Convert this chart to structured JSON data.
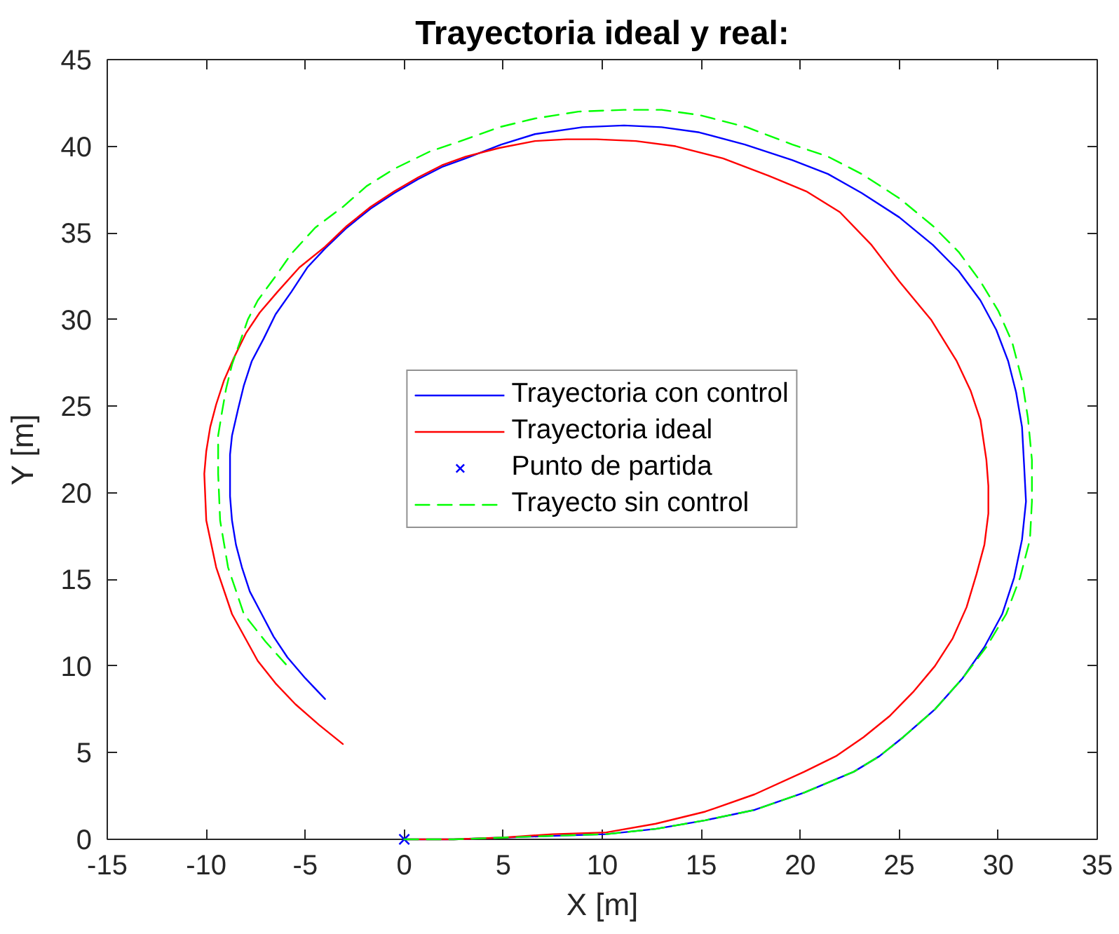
{
  "chart_data": {
    "type": "line",
    "title": "Trayectoria ideal y real:",
    "xlabel": "X [m]",
    "ylabel": "Y [m]",
    "xlim": [
      -15,
      35
    ],
    "ylim": [
      0,
      45
    ],
    "xticks": [
      -15,
      -10,
      -5,
      0,
      5,
      10,
      15,
      20,
      25,
      30,
      35
    ],
    "yticks": [
      0,
      5,
      10,
      15,
      20,
      25,
      30,
      35,
      40,
      45
    ],
    "legend": "center",
    "grid": false,
    "series": [
      {
        "name": "Trayectoria con control",
        "color": "#0000ff",
        "line_style": "solid",
        "x": [
          0,
          2.5,
          5,
          7.5,
          10.2,
          12.7,
          15.2,
          17.7,
          20.2,
          22.7,
          24,
          25.2,
          26.8,
          28.2,
          29.3,
          30.2,
          30.8,
          31.2,
          31.4,
          31.3,
          31.2,
          30.9,
          30.5,
          29.9,
          29.1,
          28,
          26.7,
          25,
          23.1,
          21.4,
          19.6,
          17.2,
          14.9,
          13,
          11.1,
          9,
          6.6,
          4.9,
          3.1,
          1.9,
          0.7,
          -0.5,
          -1.7,
          -2.9,
          -4,
          -4.9,
          -5.7,
          -6.5,
          -7.1,
          -7.7,
          -8.1,
          -8.4,
          -8.7,
          -8.8,
          -8.8,
          -8.8,
          -8.7,
          -8.5,
          -8.2,
          -7.8,
          -7.2,
          -6.6,
          -5.9,
          -5,
          -4
        ],
        "values": [
          0,
          0,
          0.1,
          0.2,
          0.3,
          0.6,
          1.1,
          1.7,
          2.7,
          3.9,
          4.8,
          5.9,
          7.5,
          9.3,
          11.1,
          13,
          15.1,
          17.3,
          19.5,
          21.7,
          23.8,
          25.8,
          27.6,
          29.4,
          31.1,
          32.8,
          34.3,
          35.9,
          37.3,
          38.4,
          39.2,
          40.1,
          40.8,
          41.1,
          41.2,
          41.1,
          40.7,
          40.1,
          39.3,
          38.8,
          38.1,
          37.3,
          36.4,
          35.3,
          34.1,
          33,
          31.6,
          30.3,
          28.9,
          27.6,
          26.2,
          24.8,
          23.3,
          22.2,
          21.1,
          19.8,
          18.4,
          17,
          15.7,
          14.3,
          13,
          11.7,
          10.5,
          9.3,
          8.1
        ]
      },
      {
        "name": "Trayectoria ideal",
        "color": "#ff0000",
        "line_style": "solid",
        "x": [
          0,
          2.5,
          5,
          7.5,
          10.2,
          12.7,
          15.2,
          17.7,
          20.2,
          21.8,
          23.2,
          24.5,
          25.7,
          26.8,
          27.7,
          28.4,
          28.9,
          29.3,
          29.5,
          29.5,
          29.4,
          29.1,
          28.6,
          27.9,
          26.6,
          25,
          23.6,
          22,
          20.3,
          18.4,
          16.1,
          13.7,
          11.7,
          9.7,
          8.2,
          6.6,
          4.8,
          3.1,
          1.9,
          0.7,
          -0.5,
          -1.7,
          -2.9,
          -4,
          -5.3,
          -6.4,
          -7.3,
          -8,
          -8.6,
          -9.1,
          -9.5,
          -9.8,
          -10,
          -10.1,
          -10,
          -9.5,
          -8.7,
          -7.4,
          -6.5,
          -5.5,
          -4.3,
          -3.1
        ],
        "values": [
          0,
          0,
          0.1,
          0.3,
          0.4,
          0.9,
          1.6,
          2.6,
          3.9,
          4.8,
          5.9,
          7.1,
          8.5,
          10,
          11.6,
          13.4,
          15.3,
          17,
          18.8,
          20.4,
          21.9,
          24.2,
          25.9,
          27.6,
          30,
          32.2,
          34.3,
          36.2,
          37.4,
          38.3,
          39.3,
          40,
          40.3,
          40.4,
          40.4,
          40.3,
          39.9,
          39.4,
          38.9,
          38.2,
          37.4,
          36.5,
          35.4,
          34.2,
          33,
          31.6,
          30.4,
          29.2,
          27.8,
          26.5,
          25.1,
          23.8,
          22.4,
          21.1,
          18.4,
          15.7,
          13,
          10.3,
          9,
          7.8,
          6.6,
          5.5
        ]
      },
      {
        "name": "Punto de partida",
        "type": "scatter",
        "marker": "cross",
        "color": "#0000ff",
        "x": [
          0
        ],
        "values": [
          0
        ]
      },
      {
        "name": "Trayecto sin control",
        "color": "#00ff00",
        "line_style": "dashed",
        "x": [
          0,
          2.5,
          5,
          7.5,
          10.2,
          12.7,
          15.2,
          17.7,
          20.2,
          22.7,
          24,
          25.2,
          26.8,
          28.2,
          29.4,
          30.4,
          31.1,
          31.6,
          31.7,
          31.7,
          31.5,
          31.2,
          30.7,
          30,
          29.1,
          28,
          26.7,
          25,
          23.1,
          21.4,
          19.6,
          17.3,
          14.9,
          13,
          11.1,
          8.8,
          6.6,
          4.8,
          3.1,
          1.3,
          -0.5,
          -1.9,
          -3.1,
          -4.5,
          -5.7,
          -6.5,
          -7.4,
          -7.9,
          -8.3,
          -8.7,
          -9,
          -9.2,
          -9.4,
          -9.4,
          -9.3,
          -8.9,
          -8.1,
          -7,
          -5.9
        ],
        "values": [
          0,
          0,
          0.1,
          0.2,
          0.3,
          0.6,
          1.1,
          1.7,
          2.7,
          3.9,
          4.8,
          5.9,
          7.5,
          9.3,
          11.1,
          13,
          15.1,
          17.3,
          19.5,
          21.9,
          24.3,
          26.5,
          28.7,
          30.5,
          32.2,
          33.9,
          35.4,
          37,
          38.4,
          39.4,
          40.1,
          41.1,
          41.8,
          42.1,
          42.1,
          42,
          41.6,
          41.1,
          40.4,
          39.7,
          38.7,
          37.7,
          36.5,
          35.3,
          33.8,
          32.5,
          31.1,
          30,
          28.7,
          27.4,
          26,
          24.7,
          23.3,
          21.1,
          18.4,
          15.7,
          13,
          11.4,
          10
        ]
      }
    ]
  }
}
